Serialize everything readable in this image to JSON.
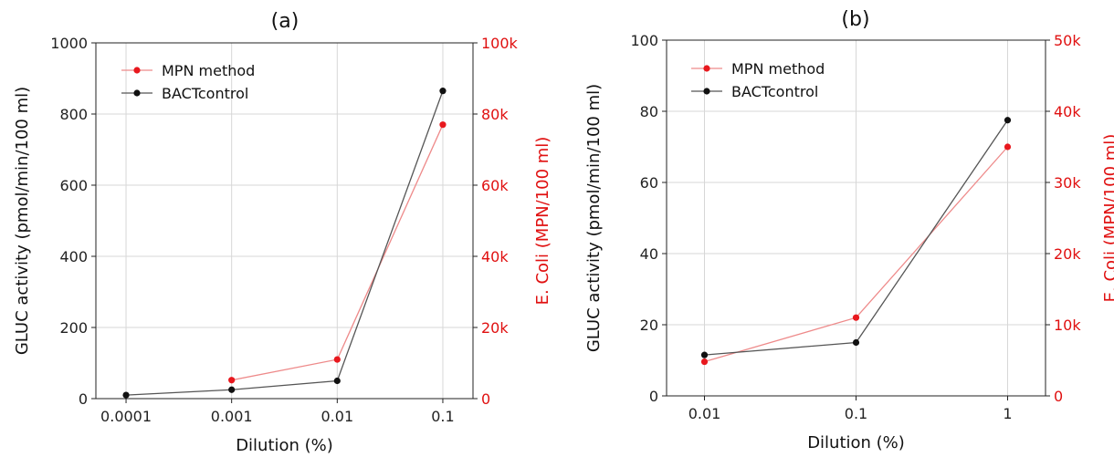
{
  "colors": {
    "mpn": "#e8181e",
    "mpn_line": "#ee8a8a",
    "bact": "#111111",
    "bact_line": "#555555",
    "grid": "#d7d7d7",
    "red_axis": "#e01010"
  },
  "chart_data": [
    {
      "type": "line",
      "title": "(a)",
      "xlabel": "Dilution (%)",
      "ylabel": "GLUC activity (pmol/min/100 ml)",
      "y2label": "E. Coli (MPN/100 ml)",
      "x_scale": "log",
      "x_ticks": [
        0.0001,
        0.001,
        0.01,
        0.1
      ],
      "x_tick_labels": [
        "0.0001",
        "0.001",
        "0.01",
        "0.1"
      ],
      "ylim": [
        0,
        1000
      ],
      "y_ticks": [
        "0",
        "200",
        "400",
        "600",
        "800",
        "1000"
      ],
      "y2lim": [
        0,
        100000
      ],
      "y2_ticks": [
        "0",
        "20k",
        "40k",
        "60k",
        "80k",
        "100k"
      ],
      "grid": true,
      "legend_position": "top-left",
      "series": [
        {
          "name": "MPN method",
          "axis": "right",
          "x": [
            0.001,
            0.01,
            0.1
          ],
          "y": [
            5200,
            11000,
            77000
          ]
        },
        {
          "name": "BACTcontrol",
          "axis": "left",
          "x": [
            0.0001,
            0.001,
            0.01,
            0.1
          ],
          "y": [
            10,
            25,
            50,
            865
          ]
        }
      ]
    },
    {
      "type": "line",
      "title": "(b)",
      "xlabel": "Dilution (%)",
      "ylabel": "GLUC activity (pmol/min/100 ml)",
      "y2label": "E. Coli (MPN/100 ml)",
      "x_scale": "log",
      "x_ticks": [
        0.01,
        0.1,
        1
      ],
      "x_tick_labels": [
        "0.01",
        "0.1",
        "1"
      ],
      "ylim": [
        0,
        100
      ],
      "y_ticks": [
        "0",
        "20",
        "40",
        "60",
        "80",
        "100"
      ],
      "y2lim": [
        0,
        50000
      ],
      "y2_ticks": [
        "0",
        "10k",
        "20k",
        "30k",
        "40k",
        "50k"
      ],
      "grid": true,
      "legend_position": "top-left",
      "series": [
        {
          "name": "MPN method",
          "axis": "right",
          "x": [
            0.01,
            0.1,
            1
          ],
          "y": [
            4800,
            11000,
            35000
          ]
        },
        {
          "name": "BACTcontrol",
          "axis": "left",
          "x": [
            0.01,
            0.1,
            1
          ],
          "y": [
            11.5,
            15,
            77.5
          ]
        }
      ]
    }
  ]
}
